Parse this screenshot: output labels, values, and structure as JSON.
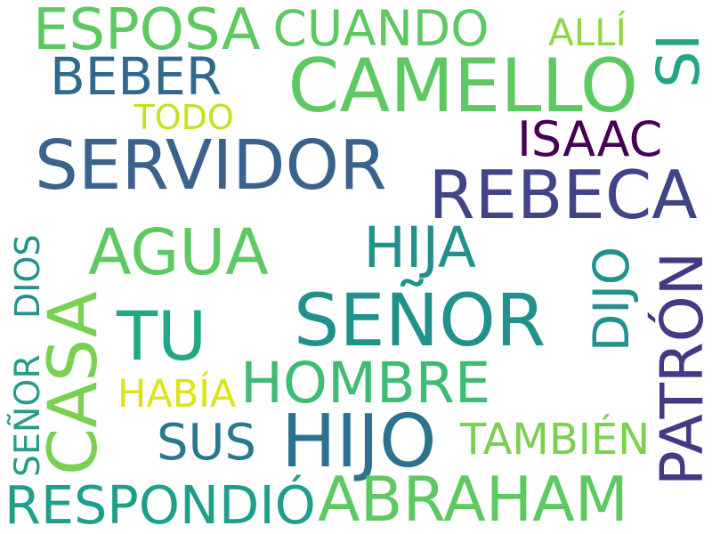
{
  "words": [
    {
      "text": "ESPOSA",
      "color": "#5ec962"
    },
    {
      "text": "CUANDO",
      "color": "#5ec962"
    },
    {
      "text": "ALLÍ",
      "color": "#90d743"
    },
    {
      "text": "SI",
      "color": "#21a585"
    },
    {
      "text": "BEBER",
      "color": "#31688e"
    },
    {
      "text": "CAMELLO",
      "color": "#5ec962"
    },
    {
      "text": "TODO",
      "color": "#c8e020"
    },
    {
      "text": "ISAAC",
      "color": "#440154"
    },
    {
      "text": "SERVIDOR",
      "color": "#3b628d"
    },
    {
      "text": "REBECA",
      "color": "#414487"
    },
    {
      "text": "AGUA",
      "color": "#5ec962"
    },
    {
      "text": "HIJA",
      "color": "#21918c"
    },
    {
      "text": "DIOS",
      "color": "#21918c"
    },
    {
      "text": "DIJO",
      "color": "#21918c"
    },
    {
      "text": "PATRÓN",
      "color": "#443983"
    },
    {
      "text": "CASA",
      "color": "#7ad151"
    },
    {
      "text": "TU",
      "color": "#22a884"
    },
    {
      "text": "SEÑOR",
      "color": "#21918c"
    },
    {
      "text": "SEÑOR",
      "color": "#2a9b8a"
    },
    {
      "text": "HOMBRE",
      "color": "#3fbc73"
    },
    {
      "text": "HABÍA",
      "color": "#dde318"
    },
    {
      "text": "SUS",
      "color": "#2a788e"
    },
    {
      "text": "HIJO",
      "color": "#2c728e"
    },
    {
      "text": "TAMBIÉN",
      "color": "#7ad151"
    },
    {
      "text": "RESPONDIÓ",
      "color": "#1f9e89"
    },
    {
      "text": "ABRAHAM",
      "color": "#5ec962"
    }
  ]
}
